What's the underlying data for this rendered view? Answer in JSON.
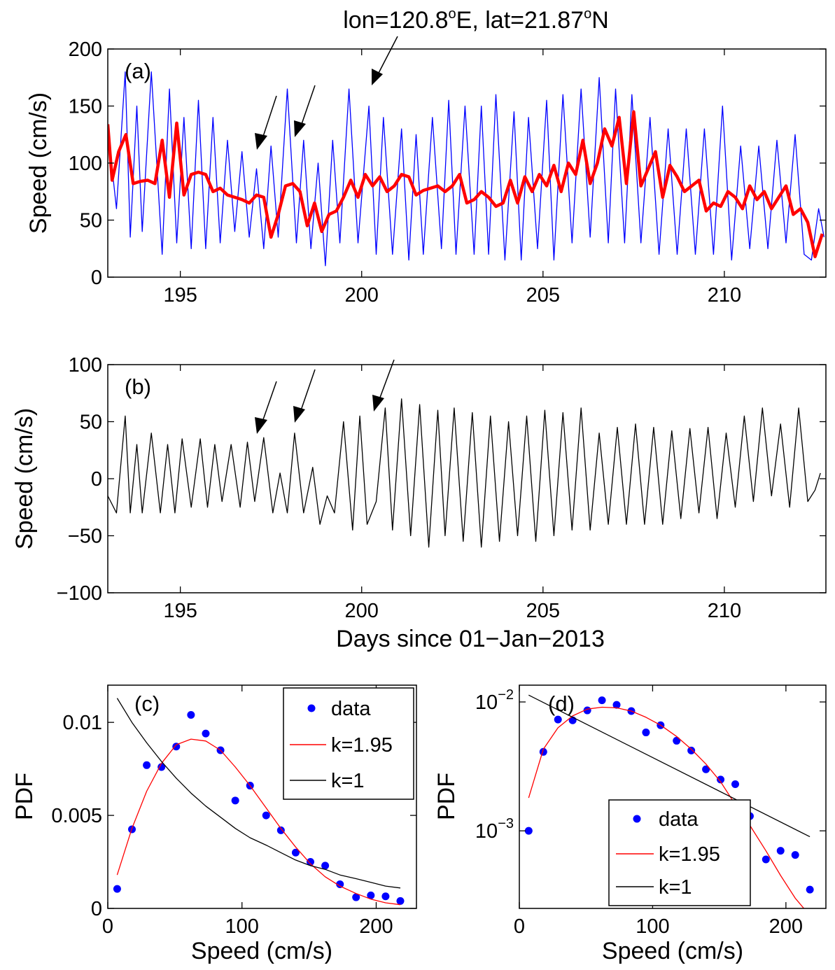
{
  "annotation": {
    "text_before": "lon=120.8",
    "sup1": "o",
    "text_mid": "E, lat=21.87",
    "sup2": "o",
    "text_after": "N"
  },
  "chart_data": [
    {
      "panel": "(a)",
      "type": "line",
      "ylabel": "Speed (cm/s)",
      "xlim": [
        193,
        212.8
      ],
      "ylim": [
        0,
        200
      ],
      "xticks": [
        195,
        200,
        205,
        210
      ],
      "yticks": [
        0,
        50,
        100,
        150,
        200
      ],
      "grid": false,
      "series": [
        {
          "color": "#0000ff",
          "style": "thin",
          "x": [
            193.0,
            193.24,
            193.48,
            193.62,
            193.8,
            193.95,
            194.2,
            194.5,
            194.7,
            194.9,
            195.1,
            195.3,
            195.5,
            195.7,
            195.9,
            196.1,
            196.3,
            196.5,
            196.7,
            196.9,
            197.1,
            197.3,
            197.5,
            197.7,
            197.95,
            198.2,
            198.4,
            198.6,
            198.8,
            199.0,
            199.2,
            199.4,
            199.65,
            199.9,
            200.2,
            200.4,
            200.6,
            200.85,
            201.1,
            201.3,
            201.5,
            201.7,
            201.95,
            202.2,
            202.4,
            202.6,
            202.85,
            203.1,
            203.3,
            203.5,
            203.7,
            203.95,
            204.2,
            204.4,
            204.6,
            204.85,
            205.1,
            205.3,
            205.55,
            205.8,
            206.05,
            206.3,
            206.55,
            206.8,
            207.0,
            207.25,
            207.45,
            207.7,
            207.95,
            208.2,
            208.45,
            208.7,
            208.95,
            209.2,
            209.45,
            209.7,
            209.95,
            210.2,
            210.45,
            210.7,
            210.95,
            211.2,
            211.45,
            211.7,
            211.95,
            212.2,
            212.4,
            212.6,
            212.75
          ],
          "y": [
            130,
            60,
            180,
            35,
            150,
            40,
            180,
            20,
            165,
            30,
            140,
            25,
            155,
            25,
            140,
            30,
            120,
            40,
            110,
            35,
            95,
            25,
            115,
            35,
            165,
            30,
            120,
            25,
            100,
            10,
            120,
            30,
            165,
            30,
            150,
            20,
            140,
            20,
            130,
            15,
            125,
            20,
            140,
            25,
            155,
            20,
            150,
            20,
            150,
            20,
            160,
            15,
            145,
            15,
            140,
            25,
            155,
            15,
            160,
            30,
            165,
            35,
            175,
            30,
            165,
            30,
            160,
            30,
            140,
            20,
            130,
            20,
            130,
            20,
            130,
            20,
            150,
            15,
            115,
            25,
            115,
            25,
            120,
            30,
            125,
            20,
            15,
            60,
            35
          ]
        },
        {
          "color": "#ff0000",
          "style": "thick",
          "x": [
            193.0,
            193.12,
            193.3,
            193.5,
            193.7,
            193.9,
            194.1,
            194.3,
            194.5,
            194.7,
            194.9,
            195.1,
            195.3,
            195.5,
            195.7,
            195.9,
            196.1,
            196.3,
            196.5,
            196.7,
            196.9,
            197.1,
            197.3,
            197.5,
            197.7,
            197.9,
            198.1,
            198.3,
            198.5,
            198.7,
            198.9,
            199.1,
            199.3,
            199.5,
            199.7,
            199.9,
            200.1,
            200.3,
            200.5,
            200.7,
            200.9,
            201.1,
            201.3,
            201.5,
            201.7,
            201.9,
            202.1,
            202.3,
            202.5,
            202.7,
            202.9,
            203.1,
            203.3,
            203.5,
            203.7,
            203.9,
            204.1,
            204.3,
            204.5,
            204.7,
            204.9,
            205.1,
            205.3,
            205.5,
            205.7,
            205.9,
            206.1,
            206.3,
            206.5,
            206.7,
            206.9,
            207.1,
            207.3,
            207.5,
            207.7,
            207.9,
            208.1,
            208.3,
            208.5,
            208.7,
            208.9,
            209.1,
            209.3,
            209.5,
            209.7,
            209.9,
            210.1,
            210.3,
            210.5,
            210.7,
            210.9,
            211.1,
            211.3,
            211.5,
            211.7,
            211.9,
            212.1,
            212.3,
            212.5,
            212.7
          ],
          "y": [
            134,
            85,
            110,
            125,
            82,
            84,
            85,
            82,
            120,
            70,
            135,
            72,
            90,
            92,
            90,
            75,
            78,
            72,
            70,
            68,
            65,
            72,
            70,
            35,
            55,
            80,
            82,
            75,
            45,
            65,
            40,
            55,
            58,
            70,
            85,
            70,
            90,
            80,
            88,
            75,
            80,
            90,
            88,
            72,
            76,
            78,
            80,
            75,
            80,
            90,
            65,
            68,
            75,
            70,
            62,
            65,
            85,
            65,
            88,
            75,
            90,
            80,
            98,
            75,
            100,
            90,
            120,
            82,
            100,
            130,
            115,
            140,
            82,
            145,
            80,
            95,
            110,
            70,
            98,
            88,
            75,
            80,
            85,
            58,
            65,
            62,
            75,
            70,
            60,
            80,
            68,
            75,
            60,
            70,
            80,
            55,
            60,
            48,
            18,
            38
          ]
        }
      ]
    },
    {
      "panel": "(b)",
      "type": "line",
      "ylabel": "Speed (cm/s)",
      "xlabel": "Days since 01−Jan−2013",
      "xlim": [
        193,
        212.8
      ],
      "ylim": [
        -100,
        100
      ],
      "xticks": [
        195,
        200,
        205,
        210
      ],
      "yticks": [
        -100,
        -50,
        0,
        50,
        100
      ],
      "grid": false,
      "series": [
        {
          "color": "#000000",
          "style": "thin",
          "x": [
            193.0,
            193.24,
            193.48,
            193.62,
            193.8,
            193.95,
            194.2,
            194.45,
            194.65,
            194.85,
            195.05,
            195.3,
            195.55,
            195.75,
            195.95,
            196.15,
            196.4,
            196.65,
            196.85,
            197.05,
            197.3,
            197.55,
            197.75,
            197.95,
            198.15,
            198.4,
            198.65,
            198.85,
            199.05,
            199.25,
            199.5,
            199.75,
            199.95,
            200.15,
            200.4,
            200.65,
            200.85,
            201.1,
            201.35,
            201.6,
            201.85,
            202.1,
            202.3,
            202.55,
            202.8,
            203.05,
            203.3,
            203.55,
            203.8,
            204.05,
            204.3,
            204.55,
            204.8,
            205.05,
            205.3,
            205.55,
            205.8,
            206.05,
            206.3,
            206.55,
            206.8,
            207.05,
            207.3,
            207.55,
            207.8,
            208.05,
            208.3,
            208.55,
            208.8,
            209.05,
            209.3,
            209.55,
            209.8,
            210.05,
            210.3,
            210.55,
            210.8,
            211.05,
            211.3,
            211.55,
            211.8,
            212.05,
            212.3,
            212.5,
            212.65
          ],
          "y": [
            -15,
            -30,
            55,
            -30,
            30,
            -30,
            40,
            -30,
            30,
            -30,
            35,
            -25,
            35,
            -25,
            30,
            -20,
            30,
            -25,
            32,
            -20,
            36,
            -30,
            5,
            -30,
            40,
            -30,
            10,
            -40,
            -15,
            -30,
            50,
            -45,
            55,
            -40,
            -20,
            62,
            -45,
            70,
            -50,
            65,
            -60,
            60,
            -50,
            62,
            -55,
            58,
            -60,
            55,
            -55,
            50,
            -50,
            55,
            -55,
            60,
            -50,
            58,
            -45,
            62,
            -45,
            40,
            -40,
            45,
            -40,
            48,
            -40,
            45,
            -40,
            42,
            -35,
            44,
            -30,
            45,
            -35,
            40,
            -25,
            55,
            -20,
            62,
            -15,
            48,
            -25,
            62,
            -20,
            -10,
            5
          ]
        }
      ]
    },
    {
      "panel": "(c)",
      "type": "scatter",
      "ylabel": "PDF",
      "xlabel": "Speed (cm/s)",
      "xlim": [
        0,
        230
      ],
      "ylim": [
        0,
        0.012
      ],
      "xticks": [
        0,
        100,
        200
      ],
      "yticks": [
        0,
        0.005,
        0.01
      ],
      "ytick_labels": [
        "0",
        "0.005",
        "0.01"
      ],
      "grid": false,
      "legend_position": "top-right",
      "series": [
        {
          "name": "data",
          "type": "scatter",
          "color": "#0000ff",
          "x": [
            7,
            18,
            29,
            40,
            51,
            62,
            73,
            84,
            95,
            106,
            118,
            129,
            140,
            151,
            162,
            173,
            185,
            196,
            207,
            218
          ],
          "y": [
            0.00105,
            0.00425,
            0.0077,
            0.0076,
            0.0087,
            0.0104,
            0.0094,
            0.0085,
            0.0058,
            0.0066,
            0.005,
            0.0042,
            0.003,
            0.0025,
            0.0023,
            0.0013,
            0.0006,
            0.0007,
            0.00065,
            0.0004
          ]
        },
        {
          "name": "k=1.95",
          "type": "line",
          "color": "#ff0000",
          "x": [
            7,
            18,
            29,
            40,
            51,
            62,
            73,
            84,
            95,
            106,
            118,
            129,
            140,
            151,
            162,
            173,
            185,
            196,
            207,
            218
          ],
          "y": [
            0.0018,
            0.0043,
            0.0063,
            0.0078,
            0.0088,
            0.0091,
            0.009,
            0.0085,
            0.0076,
            0.0066,
            0.0054,
            0.0043,
            0.0033,
            0.0024,
            0.0017,
            0.0012,
            0.0008,
            0.0005,
            0.0003,
            0.0002
          ]
        },
        {
          "name": "k=1",
          "type": "line",
          "color": "#000000",
          "x": [
            7,
            18,
            29,
            40,
            51,
            62,
            73,
            84,
            95,
            106,
            118,
            129,
            140,
            151,
            162,
            173,
            185,
            196,
            207,
            218
          ],
          "y": [
            0.0113,
            0.01,
            0.0089,
            0.0079,
            0.007,
            0.0062,
            0.0055,
            0.0049,
            0.0043,
            0.0038,
            0.0034,
            0.003,
            0.0026,
            0.0023,
            0.0021,
            0.0018,
            0.0016,
            0.0014,
            0.0012,
            0.0011
          ]
        }
      ]
    },
    {
      "panel": "(d)",
      "type": "scatter",
      "ylabel": "PDF",
      "xlabel": "Speed (cm/s)",
      "xlim": [
        0,
        230
      ],
      "ylim": [
        0.00025,
        0.0135
      ],
      "yscale": "log",
      "xticks": [
        0,
        100,
        200
      ],
      "yticks": [
        0.001,
        0.01
      ],
      "ytick_base": "10",
      "ytick_exponents": [
        "−3",
        "−2"
      ],
      "grid": false,
      "legend_position": "bottom-center",
      "series": [
        {
          "name": "data",
          "type": "scatter",
          "color": "#0000ff",
          "x": [
            7,
            18,
            29,
            40,
            51,
            62,
            73,
            84,
            95,
            106,
            118,
            129,
            140,
            151,
            162,
            173,
            185,
            196,
            207,
            218
          ],
          "y": [
            0.001,
            0.0041,
            0.0073,
            0.0072,
            0.0086,
            0.0103,
            0.0095,
            0.0085,
            0.0058,
            0.0066,
            0.005,
            0.0042,
            0.003,
            0.0025,
            0.0023,
            0.0013,
            0.0006,
            0.0007,
            0.00065,
            0.00035
          ]
        },
        {
          "name": "k=1.95",
          "type": "line",
          "color": "#ff0000",
          "x": [
            7,
            18,
            29,
            40,
            51,
            62,
            73,
            84,
            95,
            106,
            118,
            129,
            140,
            151,
            162,
            173,
            185,
            196,
            207,
            218
          ],
          "y": [
            0.0018,
            0.0043,
            0.0063,
            0.0078,
            0.0088,
            0.0091,
            0.009,
            0.0085,
            0.0076,
            0.0066,
            0.0054,
            0.0043,
            0.0033,
            0.0024,
            0.0016,
            0.0011,
            0.0007,
            0.00045,
            0.0003,
            0.00022
          ]
        },
        {
          "name": "k=1",
          "type": "line",
          "color": "#000000",
          "x": [
            7,
            218
          ],
          "y": [
            0.0113,
            0.0009
          ]
        }
      ]
    }
  ]
}
